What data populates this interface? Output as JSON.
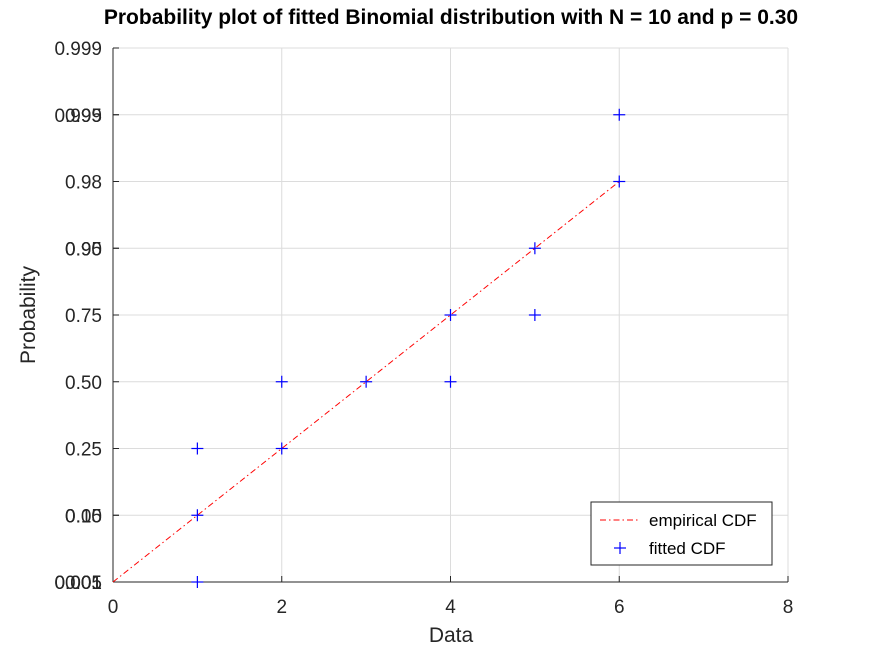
{
  "chart_data": {
    "type": "scatter",
    "title": "Probability plot of fitted Binomial distribution with N = 10 and p = 0.30",
    "xlabel": "Data",
    "ylabel": "Probability",
    "xlim": [
      0,
      8
    ],
    "x_ticks": [
      0,
      2,
      4,
      6,
      8
    ],
    "y_ticks": [
      {
        "label": "0.001",
        "row": 0
      },
      {
        "label": "0.005",
        "row": 0
      },
      {
        "label": "0.01",
        "row": 0
      },
      {
        "label": "0.05",
        "row": 1
      },
      {
        "label": "0.10",
        "row": 1
      },
      {
        "label": "0.25",
        "row": 2
      },
      {
        "label": "0.50",
        "row": 3
      },
      {
        "label": "0.75",
        "row": 4
      },
      {
        "label": "0.90",
        "row": 5
      },
      {
        "label": "0.95",
        "row": 5
      },
      {
        "label": "0.98",
        "row": 6
      },
      {
        "label": "0.99",
        "row": 7
      },
      {
        "label": "0.995",
        "row": 7
      },
      {
        "label": "0.999",
        "row": 8
      }
    ],
    "grid": true,
    "legend_position": "bottom-right",
    "series": [
      {
        "name": "empirical CDF",
        "style": "dash-dot line",
        "color": "#ff0000",
        "points": [
          [
            0,
            0
          ],
          [
            6,
            6
          ]
        ]
      },
      {
        "name": "fitted CDF",
        "style": "plus markers",
        "color": "#0000ff",
        "points": [
          [
            1,
            0
          ],
          [
            1,
            1
          ],
          [
            1,
            2
          ],
          [
            2,
            2
          ],
          [
            2,
            3
          ],
          [
            3,
            3
          ],
          [
            4,
            3
          ],
          [
            4,
            4
          ],
          [
            5,
            4
          ],
          [
            5,
            5
          ],
          [
            6,
            6
          ],
          [
            6,
            7
          ]
        ]
      }
    ]
  }
}
